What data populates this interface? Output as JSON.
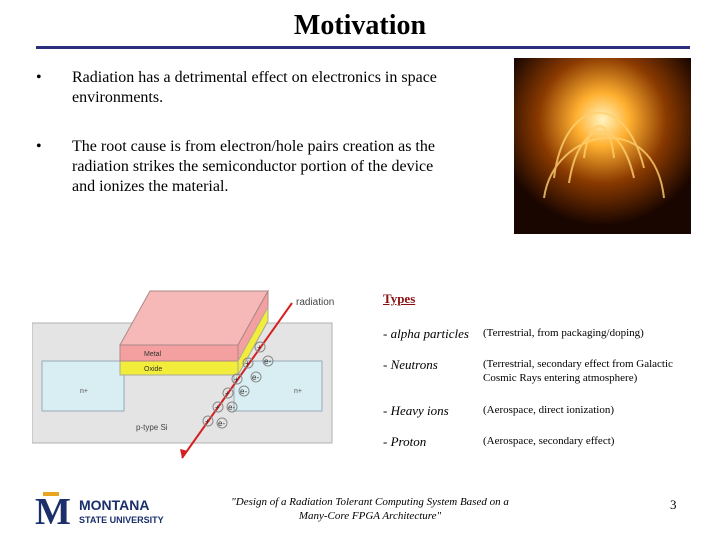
{
  "title": "Motivation",
  "bullets": [
    {
      "marker": "•",
      "text": "Radiation has a detrimental effect on electronics in space environments."
    },
    {
      "marker": "•",
      "text": "The root cause is from electron/hole pairs creation as the radiation strikes the semiconductor portion of the device and ionizes the material."
    }
  ],
  "diagram": {
    "radiation_label": "radiation",
    "metal_label": "Metal",
    "oxide_label": "Oxide",
    "nplus_left": "n+",
    "nplus_right": "n+",
    "substrate_label": "p-type Si",
    "hole_symbol": "+",
    "electron_symbol": "e-"
  },
  "types": {
    "heading": "Types",
    "items": [
      {
        "name": "- alpha particles",
        "desc": "(Terrestrial, from packaging/doping)"
      },
      {
        "name": "- Neutrons",
        "desc": "(Terrestrial, secondary effect from Galactic Cosmic Rays entering atmosphere)"
      },
      {
        "name": "- Heavy ions",
        "desc": "(Aerospace, direct ionization)"
      },
      {
        "name": "- Proton",
        "desc": "(Aerospace, secondary effect)"
      }
    ]
  },
  "logo": {
    "line1": "MONTANA",
    "line2": "STATE UNIVERSITY",
    "mark": "M"
  },
  "footer": "\"Design of a Radiation Tolerant Computing System Based on a Many-Core FPGA Architecture\"",
  "page_number": "3",
  "colors": {
    "rule": "#2b2e7a",
    "types_heading": "#8a1010",
    "metal": "#f5a0a0",
    "oxide": "#f2ec3a",
    "silicon": "#d8eef2",
    "ray": "#d42020"
  }
}
